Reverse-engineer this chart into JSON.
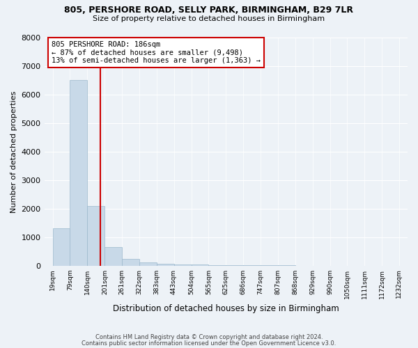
{
  "title1": "805, PERSHORE ROAD, SELLY PARK, BIRMINGHAM, B29 7LR",
  "title2": "Size of property relative to detached houses in Birmingham",
  "xlabel": "Distribution of detached houses by size in Birmingham",
  "ylabel": "Number of detached properties",
  "bar_values": [
    1300,
    6500,
    2100,
    650,
    230,
    120,
    70,
    50,
    30,
    10,
    5,
    5,
    5,
    5,
    2,
    2,
    2,
    1,
    1,
    1
  ],
  "bin_edges": [
    19,
    79,
    140,
    201,
    261,
    322,
    383,
    443,
    504,
    565,
    625,
    686,
    747,
    807,
    868,
    929,
    990,
    1050,
    1111,
    1172,
    1232
  ],
  "bin_labels": [
    "19sqm",
    "79sqm",
    "140sqm",
    "201sqm",
    "261sqm",
    "322sqm",
    "383sqm",
    "443sqm",
    "504sqm",
    "565sqm",
    "625sqm",
    "686sqm",
    "747sqm",
    "807sqm",
    "868sqm",
    "929sqm",
    "990sqm",
    "1050sqm",
    "1111sqm",
    "1172sqm",
    "1232sqm"
  ],
  "bar_color": "#c8d9e8",
  "bar_edge_color": "#9ab8cc",
  "red_line_x": 1.85,
  "annotation_line1": "805 PERSHORE ROAD: 186sqm",
  "annotation_line2": "← 87% of detached houses are smaller (9,498)",
  "annotation_line3": "13% of semi-detached houses are larger (1,363) →",
  "annotation_box_color": "#ffffff",
  "annotation_box_edge": "#cc0000",
  "red_line_color": "#cc0000",
  "ylim": [
    0,
    8000
  ],
  "yticks": [
    0,
    1000,
    2000,
    3000,
    4000,
    5000,
    6000,
    7000,
    8000
  ],
  "footer1": "Contains HM Land Registry data © Crown copyright and database right 2024.",
  "footer2": "Contains public sector information licensed under the Open Government Licence v3.0.",
  "bg_color": "#edf2f7",
  "plot_bg_color": "#edf2f7",
  "grid_color": "#ffffff"
}
